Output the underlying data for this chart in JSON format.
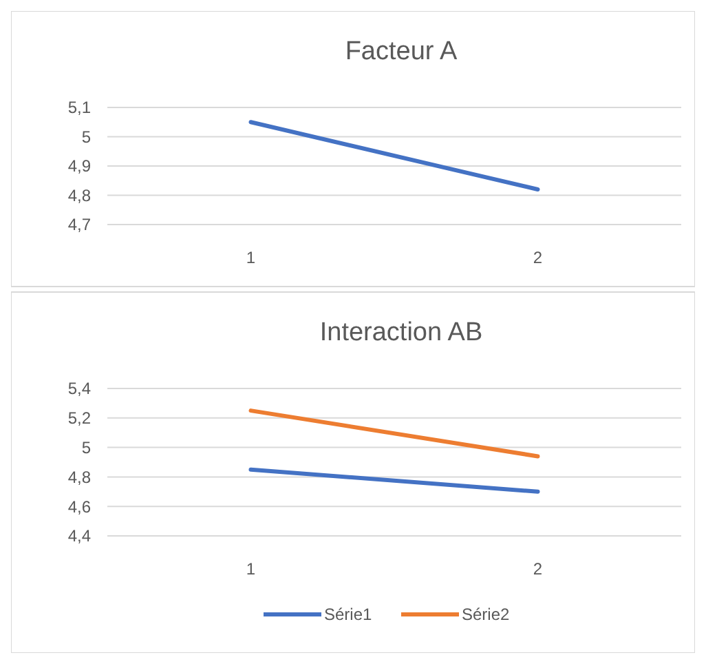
{
  "chart_data": [
    {
      "type": "line",
      "title": "Facteur A",
      "categories": [
        "1",
        "2"
      ],
      "series": [
        {
          "color": "#4472c4",
          "values": [
            5.05,
            4.82
          ]
        }
      ],
      "ylim": [
        4.7,
        5.1
      ],
      "yticks": [
        {
          "value": 4.7,
          "label": "4,7"
        },
        {
          "value": 4.8,
          "label": "4,8"
        },
        {
          "value": 4.9,
          "label": "4,9"
        },
        {
          "value": 5,
          "label": "5"
        },
        {
          "value": 5.1,
          "label": "5,1"
        }
      ],
      "grid": "y",
      "legend": false
    },
    {
      "type": "line",
      "title": "Interaction AB",
      "categories": [
        "1",
        "2"
      ],
      "series": [
        {
          "name": "Série1",
          "color": "#4472c4",
          "values": [
            4.85,
            4.7
          ]
        },
        {
          "name": "Série2",
          "color": "#ed7d31",
          "values": [
            5.25,
            4.94
          ]
        }
      ],
      "ylim": [
        4.4,
        5.4
      ],
      "yticks": [
        {
          "value": 4.4,
          "label": "4,4"
        },
        {
          "value": 4.6,
          "label": "4,6"
        },
        {
          "value": 4.8,
          "label": "4,8"
        },
        {
          "value": 5,
          "label": "5"
        },
        {
          "value": 5.2,
          "label": "5,2"
        },
        {
          "value": 5.4,
          "label": "5,4"
        }
      ],
      "grid": "y",
      "legend": "bottom"
    }
  ]
}
